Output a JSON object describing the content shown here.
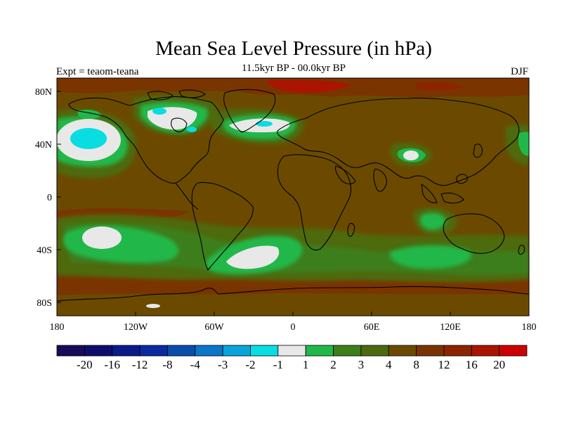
{
  "title": "Mean Sea Level Pressure (in hPa)",
  "subtitle": "11.5kyr BP - 00.0kyr BP",
  "left_string": "Expt = teaom-teana",
  "right_string": "DJF",
  "map": {
    "projection": "cylindrical equidistant",
    "background_field_color": "#6b4a00",
    "coastline_color": "#000000",
    "x_ticks": [
      "180",
      "120W",
      "60W",
      "0",
      "60E",
      "120E",
      "180"
    ],
    "y_ticks": [
      "80N",
      "40N",
      "0",
      "40S",
      "80S"
    ]
  },
  "colorbar": {
    "colors": [
      "#1a0a5a",
      "#0d0d6e",
      "#0a1a88",
      "#0a2aa0",
      "#0a4eaa",
      "#0a76c8",
      "#0aa4d8",
      "#08dde2",
      "#e8e8e8",
      "#20b84a",
      "#3c7e1a",
      "#4e6a10",
      "#6b4a00",
      "#7a3400",
      "#8c2400",
      "#aa1400",
      "#cc0000"
    ],
    "labels": [
      "-20",
      "-16",
      "-12",
      "-8",
      "-4",
      "-3",
      "-2",
      "-1",
      "1",
      "2",
      "3",
      "4",
      "8",
      "12",
      "16",
      "20"
    ]
  },
  "chart_data": {
    "type": "heatmap",
    "title": "Mean Sea Level Pressure (in hPa)",
    "subtitle": "11.5kyr BP - 00.0kyr BP",
    "experiment": "Expt = teaom-teana",
    "season": "DJF",
    "x_range_lon": [
      -180,
      180
    ],
    "y_range_lat": [
      -90,
      90
    ],
    "contour_levels": [
      -20,
      -16,
      -12,
      -8,
      -4,
      -3,
      -2,
      -1,
      1,
      2,
      3,
      4,
      8,
      12,
      16,
      20
    ],
    "features": [
      {
        "lon": -155,
        "lat": 43,
        "value": -2
      },
      {
        "lon": -100,
        "lat": 62,
        "value": -2
      },
      {
        "lon": -30,
        "lat": 58,
        "value": -2
      },
      {
        "lon": 95,
        "lat": 28,
        "value": -1
      },
      {
        "lon": -130,
        "lat": -30,
        "value": -1
      },
      {
        "lon": -25,
        "lat": -40,
        "value": -1
      },
      {
        "lon": 90,
        "lat": -40,
        "value": 2
      },
      {
        "lon": 10,
        "lat": 85,
        "value": 12
      }
    ]
  }
}
